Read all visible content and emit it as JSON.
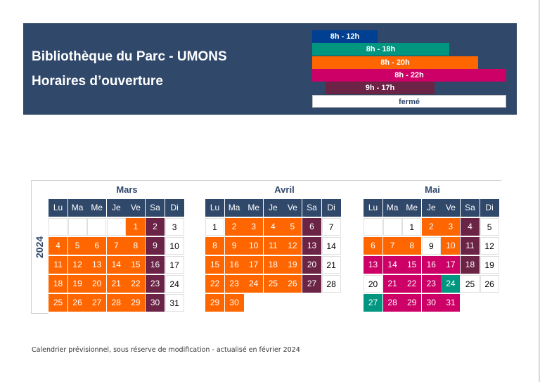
{
  "header": {
    "title_line1": "Bibliothèque du Parc - UMONS",
    "title_line2": "Horaires d’ouverture"
  },
  "legend": [
    {
      "key": "b",
      "label": "8h - 12h",
      "color": "#003f91"
    },
    {
      "key": "t",
      "label": "8h - 18h",
      "color": "#00967f"
    },
    {
      "key": "o",
      "label": "8h - 20h",
      "color": "#ff6600"
    },
    {
      "key": "m",
      "label": "8h - 22h",
      "color": "#cc0066"
    },
    {
      "key": "p",
      "label": "9h - 17h",
      "color": "#6b2346"
    },
    {
      "key": "w",
      "label": "fermé",
      "color": "#ffffff"
    }
  ],
  "year": "2024",
  "weekdays": [
    "Lu",
    "Ma",
    "Me",
    "Je",
    "Ve",
    "Sa",
    "Di"
  ],
  "months": [
    {
      "name": "Mars",
      "weeks": [
        [
          null,
          null,
          null,
          null,
          [
            "1",
            "o"
          ],
          [
            "2",
            "p"
          ],
          [
            "3",
            "w"
          ]
        ],
        [
          [
            "4",
            "o"
          ],
          [
            "5",
            "o"
          ],
          [
            "6",
            "o"
          ],
          [
            "7",
            "o"
          ],
          [
            "8",
            "o"
          ],
          [
            "9",
            "p"
          ],
          [
            "10",
            "w"
          ]
        ],
        [
          [
            "11",
            "o"
          ],
          [
            "12",
            "o"
          ],
          [
            "13",
            "o"
          ],
          [
            "14",
            "o"
          ],
          [
            "15",
            "o"
          ],
          [
            "16",
            "p"
          ],
          [
            "17",
            "w"
          ]
        ],
        [
          [
            "18",
            "o"
          ],
          [
            "19",
            "o"
          ],
          [
            "20",
            "o"
          ],
          [
            "21",
            "o"
          ],
          [
            "22",
            "o"
          ],
          [
            "23",
            "p"
          ],
          [
            "24",
            "w"
          ]
        ],
        [
          [
            "25",
            "o"
          ],
          [
            "26",
            "o"
          ],
          [
            "27",
            "o"
          ],
          [
            "28",
            "o"
          ],
          [
            "29",
            "o"
          ],
          [
            "30",
            "p"
          ],
          [
            "31",
            "w"
          ]
        ]
      ]
    },
    {
      "name": "Avril",
      "weeks": [
        [
          [
            "1",
            "w"
          ],
          [
            "2",
            "o"
          ],
          [
            "3",
            "o"
          ],
          [
            "4",
            "o"
          ],
          [
            "5",
            "o"
          ],
          [
            "6",
            "p"
          ],
          [
            "7",
            "w"
          ]
        ],
        [
          [
            "8",
            "o"
          ],
          [
            "9",
            "o"
          ],
          [
            "10",
            "o"
          ],
          [
            "11",
            "o"
          ],
          [
            "12",
            "o"
          ],
          [
            "13",
            "p"
          ],
          [
            "14",
            "w"
          ]
        ],
        [
          [
            "15",
            "o"
          ],
          [
            "16",
            "o"
          ],
          [
            "17",
            "o"
          ],
          [
            "18",
            "o"
          ],
          [
            "19",
            "o"
          ],
          [
            "20",
            "p"
          ],
          [
            "21",
            "w"
          ]
        ],
        [
          [
            "22",
            "o"
          ],
          [
            "23",
            "o"
          ],
          [
            "24",
            "o"
          ],
          [
            "25",
            "o"
          ],
          [
            "26",
            "o"
          ],
          [
            "27",
            "p"
          ],
          [
            "28",
            "w"
          ]
        ],
        [
          [
            "29",
            "o"
          ],
          [
            "30",
            "o"
          ]
        ]
      ]
    },
    {
      "name": "Mai",
      "weeks": [
        [
          null,
          null,
          [
            "1",
            "w"
          ],
          [
            "2",
            "o"
          ],
          [
            "3",
            "o"
          ],
          [
            "4",
            "p"
          ],
          [
            "5",
            "w"
          ]
        ],
        [
          [
            "6",
            "o"
          ],
          [
            "7",
            "o"
          ],
          [
            "8",
            "o"
          ],
          [
            "9",
            "w"
          ],
          [
            "10",
            "o"
          ],
          [
            "11",
            "p"
          ],
          [
            "12",
            "w"
          ]
        ],
        [
          [
            "13",
            "m"
          ],
          [
            "14",
            "m"
          ],
          [
            "15",
            "m"
          ],
          [
            "16",
            "m"
          ],
          [
            "17",
            "m"
          ],
          [
            "18",
            "p"
          ],
          [
            "19",
            "w"
          ]
        ],
        [
          [
            "20",
            "w"
          ],
          [
            "21",
            "m"
          ],
          [
            "22",
            "m"
          ],
          [
            "23",
            "m"
          ],
          [
            "24",
            "t"
          ],
          [
            "25",
            "w"
          ],
          [
            "26",
            "w"
          ]
        ],
        [
          [
            "27",
            "t"
          ],
          [
            "28",
            "m"
          ],
          [
            "29",
            "m"
          ],
          [
            "30",
            "m"
          ],
          [
            "31",
            "m"
          ]
        ]
      ]
    }
  ],
  "footer": "Calendrier prévisionnel, sous réserve de modification - actualisé en février 2024"
}
